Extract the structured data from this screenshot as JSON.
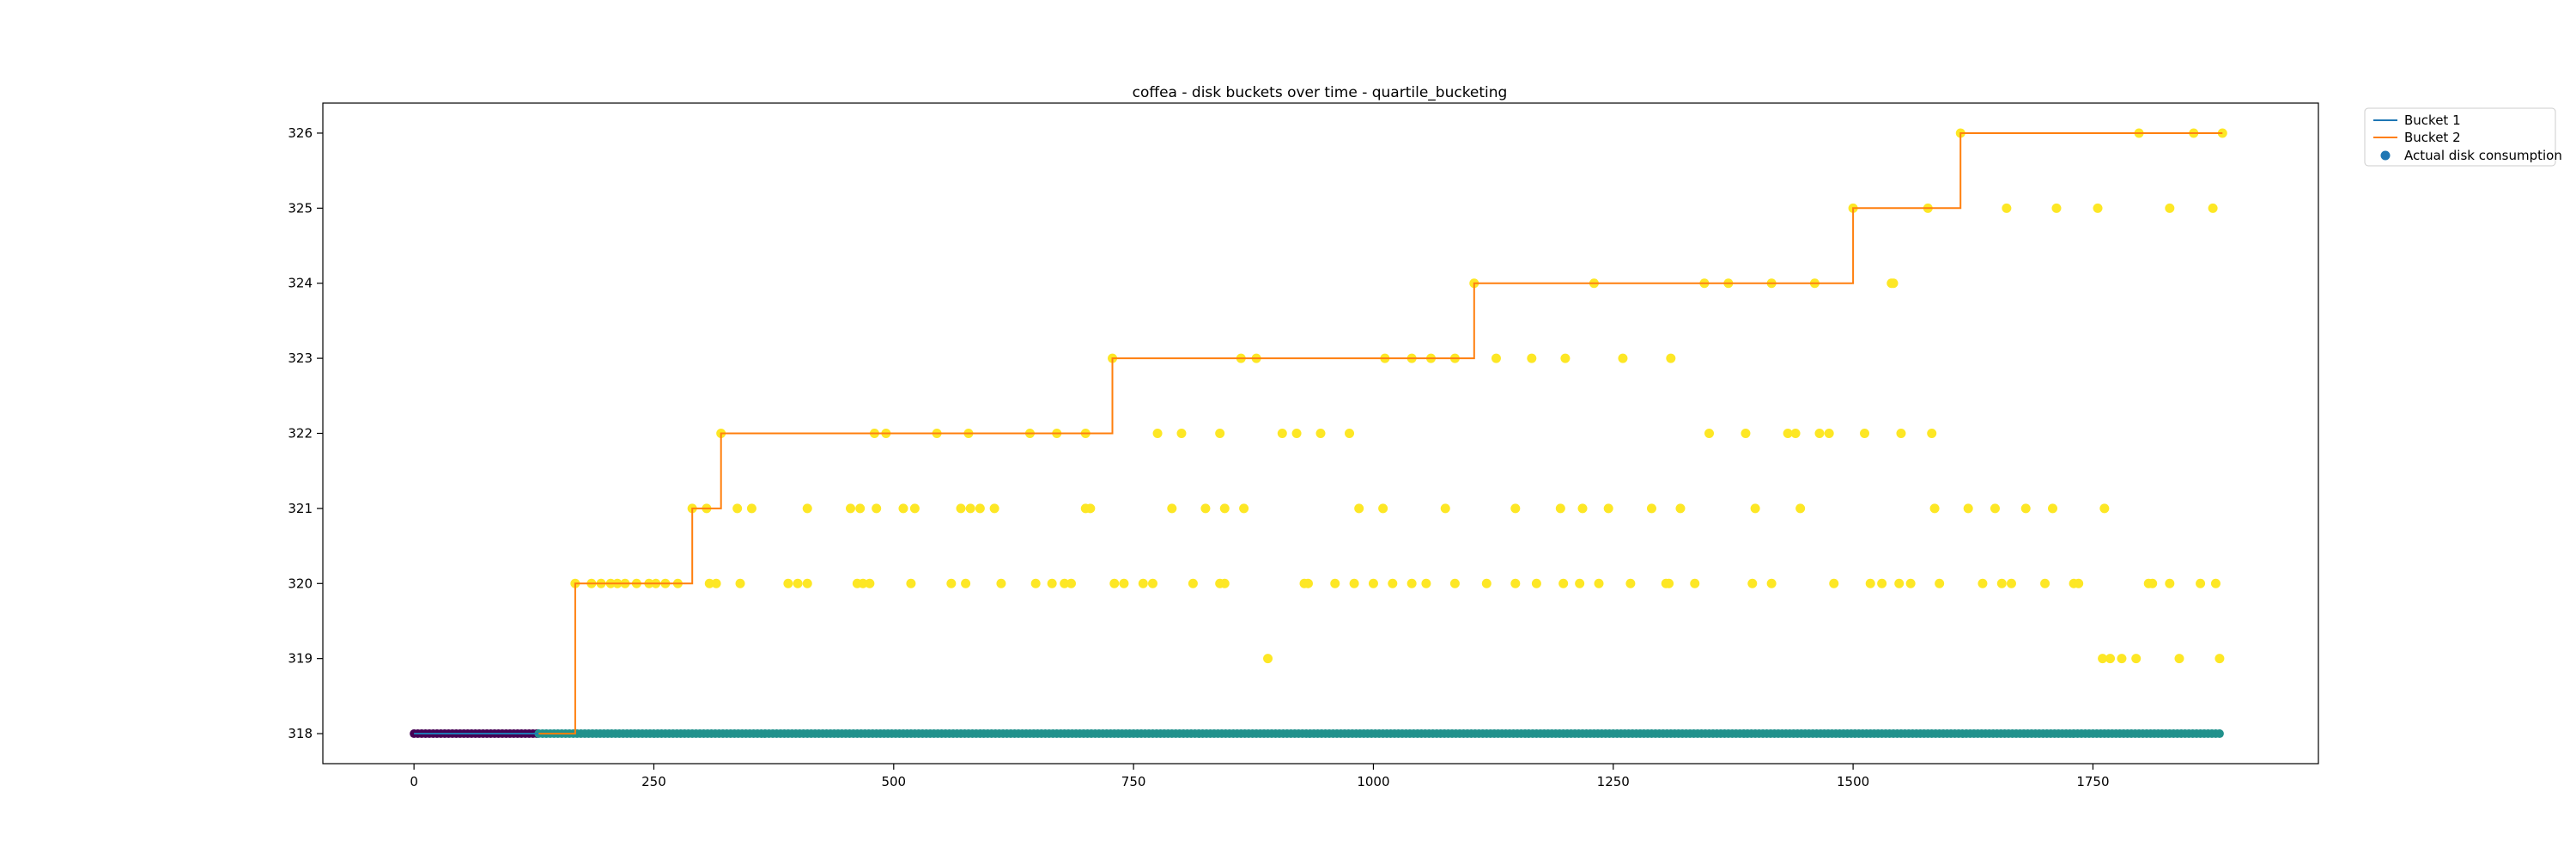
{
  "chart_data": {
    "type": "line",
    "title": "coffea - disk buckets over time - quartile_bucketing",
    "xlabel": "",
    "ylabel": "",
    "xlim": [
      -95,
      1985
    ],
    "ylim": [
      317.6,
      326.4
    ],
    "xticks": [
      0,
      250,
      500,
      750,
      1000,
      1250,
      1500,
      1750
    ],
    "yticks": [
      318,
      319,
      320,
      321,
      322,
      323,
      324,
      325,
      326
    ],
    "grid": false,
    "legend_position": "outside-top-right",
    "colors": {
      "bucket1": "#1f77b4",
      "bucket2": "#ff7f0e",
      "scatter_yellow": "#fde725",
      "scatter_teal": "#21918c",
      "scatter_purple": "#440154",
      "legend_marker": "#1f77b4"
    },
    "legend": [
      "Bucket 1",
      "Bucket 2",
      "Actual disk consumption"
    ],
    "series": [
      {
        "name": "Bucket 1",
        "points": [
          [
            0,
            318
          ],
          [
            130,
            318
          ]
        ]
      },
      {
        "name": "Bucket 2",
        "points": [
          [
            130,
            318
          ],
          [
            168,
            318
          ],
          [
            168,
            320
          ],
          [
            290,
            320
          ],
          [
            290,
            321
          ],
          [
            320,
            321
          ],
          [
            320,
            322
          ],
          [
            728,
            322
          ],
          [
            728,
            323
          ],
          [
            1105,
            323
          ],
          [
            1105,
            324
          ],
          [
            1500,
            324
          ],
          [
            1500,
            325
          ],
          [
            1612,
            325
          ],
          [
            1612,
            326
          ],
          [
            1885,
            326
          ]
        ]
      }
    ],
    "scatter_baseline": {
      "name": "Actual disk consumption",
      "y": 318,
      "purple_range": [
        0,
        130
      ],
      "teal_range": [
        130,
        1885
      ]
    },
    "scatter_points": [
      [
        168,
        320
      ],
      [
        185,
        320
      ],
      [
        195,
        320
      ],
      [
        205,
        320
      ],
      [
        212,
        320
      ],
      [
        220,
        320
      ],
      [
        232,
        320
      ],
      [
        245,
        320
      ],
      [
        252,
        320
      ],
      [
        262,
        320
      ],
      [
        275,
        320
      ],
      [
        290,
        321
      ],
      [
        305,
        321
      ],
      [
        308,
        320
      ],
      [
        315,
        320
      ],
      [
        320,
        322
      ],
      [
        340,
        320
      ],
      [
        337,
        321
      ],
      [
        352,
        321
      ],
      [
        390,
        320
      ],
      [
        400,
        320
      ],
      [
        410,
        320
      ],
      [
        410,
        321
      ],
      [
        455,
        321
      ],
      [
        465,
        321
      ],
      [
        462,
        320
      ],
      [
        468,
        320
      ],
      [
        475,
        320
      ],
      [
        480,
        322
      ],
      [
        482,
        321
      ],
      [
        492,
        322
      ],
      [
        510,
        321
      ],
      [
        518,
        320
      ],
      [
        522,
        321
      ],
      [
        545,
        322
      ],
      [
        560,
        320
      ],
      [
        570,
        321
      ],
      [
        575,
        320
      ],
      [
        578,
        322
      ],
      [
        580,
        321
      ],
      [
        590,
        321
      ],
      [
        605,
        321
      ],
      [
        612,
        320
      ],
      [
        642,
        322
      ],
      [
        648,
        320
      ],
      [
        665,
        320
      ],
      [
        670,
        322
      ],
      [
        678,
        320
      ],
      [
        685,
        320
      ],
      [
        700,
        322
      ],
      [
        700,
        321
      ],
      [
        705,
        321
      ],
      [
        728,
        323
      ],
      [
        730,
        320
      ],
      [
        740,
        320
      ],
      [
        760,
        320
      ],
      [
        770,
        320
      ],
      [
        775,
        322
      ],
      [
        790,
        321
      ],
      [
        800,
        322
      ],
      [
        812,
        320
      ],
      [
        825,
        321
      ],
      [
        840,
        320
      ],
      [
        840,
        322
      ],
      [
        845,
        320
      ],
      [
        845,
        321
      ],
      [
        862,
        323
      ],
      [
        865,
        321
      ],
      [
        878,
        323
      ],
      [
        890,
        319
      ],
      [
        905,
        322
      ],
      [
        920,
        322
      ],
      [
        928,
        320
      ],
      [
        932,
        320
      ],
      [
        945,
        322
      ],
      [
        960,
        320
      ],
      [
        975,
        322
      ],
      [
        980,
        320
      ],
      [
        985,
        321
      ],
      [
        1000,
        320
      ],
      [
        1010,
        321
      ],
      [
        1012,
        323
      ],
      [
        1020,
        320
      ],
      [
        1040,
        323
      ],
      [
        1040,
        320
      ],
      [
        1055,
        320
      ],
      [
        1060,
        323
      ],
      [
        1075,
        321
      ],
      [
        1085,
        323
      ],
      [
        1085,
        320
      ],
      [
        1105,
        324
      ],
      [
        1118,
        320
      ],
      [
        1128,
        323
      ],
      [
        1148,
        321
      ],
      [
        1148,
        320
      ],
      [
        1165,
        323
      ],
      [
        1170,
        320
      ],
      [
        1195,
        321
      ],
      [
        1198,
        320
      ],
      [
        1200,
        323
      ],
      [
        1215,
        320
      ],
      [
        1218,
        321
      ],
      [
        1230,
        324
      ],
      [
        1235,
        320
      ],
      [
        1245,
        321
      ],
      [
        1260,
        323
      ],
      [
        1268,
        320
      ],
      [
        1290,
        321
      ],
      [
        1305,
        320
      ],
      [
        1308,
        320
      ],
      [
        1310,
        323
      ],
      [
        1320,
        321
      ],
      [
        1335,
        320
      ],
      [
        1345,
        324
      ],
      [
        1350,
        322
      ],
      [
        1370,
        324
      ],
      [
        1388,
        322
      ],
      [
        1395,
        320
      ],
      [
        1398,
        321
      ],
      [
        1415,
        320
      ],
      [
        1415,
        324
      ],
      [
        1432,
        322
      ],
      [
        1440,
        322
      ],
      [
        1445,
        321
      ],
      [
        1460,
        324
      ],
      [
        1465,
        322
      ],
      [
        1475,
        322
      ],
      [
        1480,
        320
      ],
      [
        1500,
        325
      ],
      [
        1512,
        322
      ],
      [
        1518,
        320
      ],
      [
        1530,
        320
      ],
      [
        1540,
        324
      ],
      [
        1542,
        324
      ],
      [
        1548,
        320
      ],
      [
        1550,
        322
      ],
      [
        1560,
        320
      ],
      [
        1578,
        325
      ],
      [
        1582,
        322
      ],
      [
        1585,
        321
      ],
      [
        1590,
        320
      ],
      [
        1612,
        326
      ],
      [
        1620,
        321
      ],
      [
        1635,
        320
      ],
      [
        1648,
        321
      ],
      [
        1655,
        320
      ],
      [
        1660,
        325
      ],
      [
        1665,
        320
      ],
      [
        1680,
        321
      ],
      [
        1700,
        320
      ],
      [
        1708,
        321
      ],
      [
        1712,
        325
      ],
      [
        1730,
        320
      ],
      [
        1735,
        320
      ],
      [
        1755,
        325
      ],
      [
        1760,
        319
      ],
      [
        1762,
        321
      ],
      [
        1768,
        319
      ],
      [
        1780,
        319
      ],
      [
        1795,
        319
      ],
      [
        1798,
        326
      ],
      [
        1808,
        320
      ],
      [
        1812,
        320
      ],
      [
        1830,
        325
      ],
      [
        1830,
        320
      ],
      [
        1840,
        319
      ],
      [
        1855,
        326
      ],
      [
        1862,
        320
      ],
      [
        1875,
        325
      ],
      [
        1878,
        320
      ],
      [
        1882,
        319
      ],
      [
        1885,
        326
      ]
    ]
  }
}
